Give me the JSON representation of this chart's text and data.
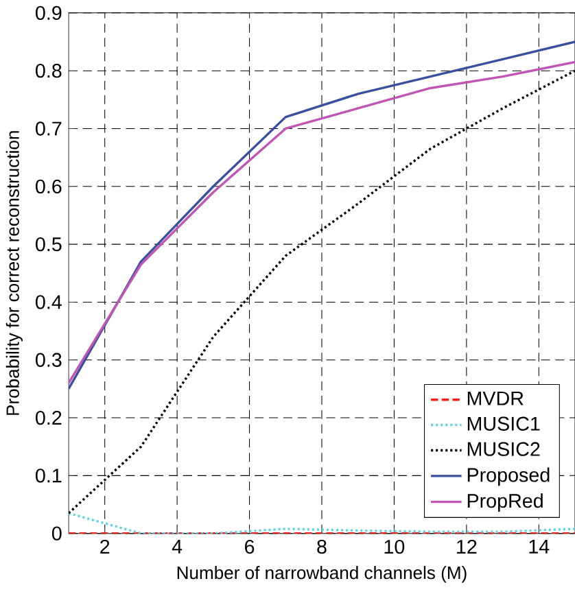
{
  "chart_data": {
    "type": "line",
    "xlabel": "Number of narrowband channels (M)",
    "ylabel": "Probability for correct reconstruction",
    "xlim": [
      1,
      15
    ],
    "ylim": [
      0,
      0.9
    ],
    "xticks": [
      2,
      4,
      6,
      8,
      10,
      12,
      14
    ],
    "yticks": [
      0,
      0.1,
      0.2,
      0.3,
      0.4,
      0.5,
      0.6,
      0.7,
      0.8,
      0.9
    ],
    "grid": true,
    "legend": "bottom right",
    "marker": "none",
    "x": [
      1,
      3,
      5,
      7,
      9,
      11,
      13,
      15
    ],
    "series": [
      {
        "name": "MVDR",
        "color": "#ff2020",
        "line_style": "dashed",
        "values": [
          0,
          0,
          0,
          0,
          0,
          0,
          0,
          0
        ]
      },
      {
        "name": "MUSIC1",
        "color": "#5fd3e6",
        "line_style": "dotted",
        "values": [
          0.035,
          0.0,
          0.0,
          0.008,
          0.005,
          0.003,
          0.003,
          0.008
        ]
      },
      {
        "name": "MUSIC2",
        "color": "#000000",
        "line_style": "dotted",
        "values": [
          0.035,
          0.15,
          0.34,
          0.48,
          0.57,
          0.665,
          0.735,
          0.8
        ]
      },
      {
        "name": "Proposed",
        "color": "#3b4fa0",
        "line_style": "solid",
        "values": [
          0.25,
          0.47,
          0.6,
          0.72,
          0.76,
          0.79,
          0.82,
          0.85
        ]
      },
      {
        "name": "PropRed",
        "color": "#c055b5",
        "line_style": "solid",
        "values": [
          0.26,
          0.465,
          0.59,
          0.7,
          0.735,
          0.77,
          0.79,
          0.815
        ]
      }
    ]
  }
}
